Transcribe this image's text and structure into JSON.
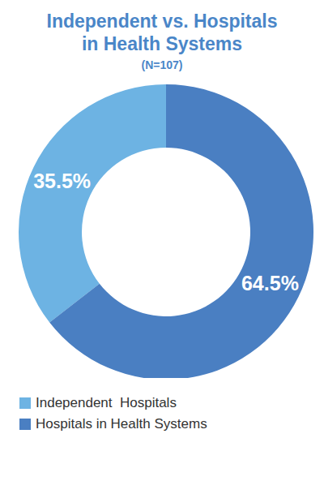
{
  "chart_data": {
    "type": "pie",
    "title": "Independent vs. Hospitals in Health Systems",
    "subtitle": "(N=107)",
    "categories": [
      "Independent  Hospitals",
      "Hospitals in Health Systems"
    ],
    "values": [
      35.5,
      64.5
    ],
    "value_labels": [
      "35.5%",
      "64.5%"
    ],
    "colors": [
      "#6db3e3",
      "#4a7fc2"
    ],
    "data_labels": true,
    "legend": "bottom"
  }
}
